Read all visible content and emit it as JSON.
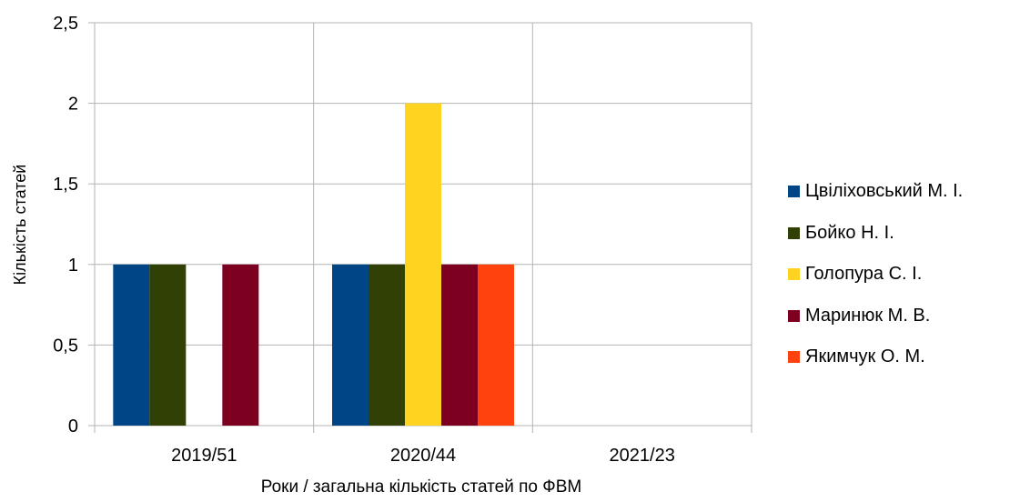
{
  "chart_data": {
    "type": "bar",
    "title": "",
    "xlabel": "Роки / загальна кількість статей по ФВМ",
    "ylabel": "Кількість статей",
    "categories": [
      "2019/51",
      "2020/44",
      "2021/23"
    ],
    "ylim": [
      0,
      2.5
    ],
    "yticks": [
      "0",
      "0,5",
      "1",
      "1,5",
      "2",
      "2,5"
    ],
    "grid": true,
    "legend_position": "right",
    "series": [
      {
        "name": "Цвіліховський М. І.",
        "color": "#004586",
        "values": [
          1,
          1,
          0
        ]
      },
      {
        "name": "Бойко Н. І.",
        "color": "#314004",
        "values": [
          1,
          1,
          0
        ]
      },
      {
        "name": "Голопура С. І.",
        "color": "#FFD320",
        "values": [
          0,
          2,
          0
        ]
      },
      {
        "name": "Маринюк М. В.",
        "color": "#7E0021",
        "values": [
          1,
          1,
          0
        ]
      },
      {
        "name": "Якимчук О. М.",
        "color": "#FF420E",
        "values": [
          0,
          1,
          0
        ]
      }
    ]
  }
}
